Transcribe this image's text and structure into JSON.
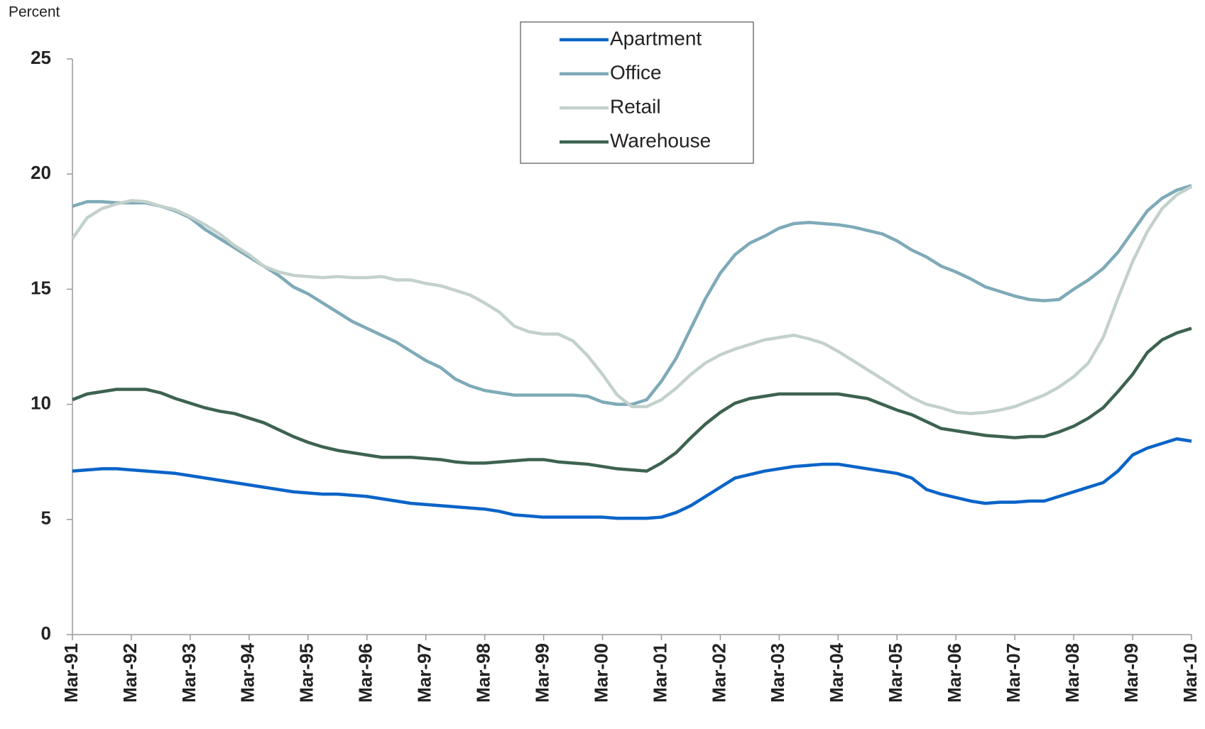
{
  "chart_data": {
    "type": "line",
    "y_label": "Percent",
    "categories": [
      "Mar-91",
      null,
      null,
      null,
      "Mar-92",
      null,
      null,
      null,
      "Mar-93",
      null,
      null,
      null,
      "Mar-94",
      null,
      null,
      null,
      "Mar-95",
      null,
      null,
      null,
      "Mar-96",
      null,
      null,
      null,
      "Mar-97",
      null,
      null,
      null,
      "Mar-98",
      null,
      null,
      null,
      "Mar-99",
      null,
      null,
      null,
      "Mar-00",
      null,
      null,
      null,
      "Mar-01",
      null,
      null,
      null,
      "Mar-02",
      null,
      null,
      null,
      "Mar-03",
      null,
      null,
      null,
      "Mar-04",
      null,
      null,
      null,
      "Mar-05",
      null,
      null,
      null,
      "Mar-06",
      null,
      null,
      null,
      "Mar-07",
      null,
      null,
      null,
      "Mar-08",
      null,
      null,
      null,
      "Mar-09",
      null,
      null,
      null,
      "Mar-10"
    ],
    "series": [
      {
        "name": "Apartment",
        "color": "#0a64c8",
        "values": [
          7.1,
          7.15,
          7.2,
          7.2,
          7.15,
          7.1,
          7.05,
          7.0,
          6.9,
          6.8,
          6.7,
          6.6,
          6.5,
          6.4,
          6.3,
          6.2,
          6.15,
          6.1,
          6.1,
          6.05,
          6.0,
          5.9,
          5.8,
          5.7,
          5.65,
          5.6,
          5.55,
          5.5,
          5.45,
          5.35,
          5.2,
          5.15,
          5.1,
          5.1,
          5.1,
          5.1,
          5.1,
          5.05,
          5.05,
          5.05,
          5.1,
          5.3,
          5.6,
          6.0,
          6.4,
          6.8,
          6.95,
          7.1,
          7.2,
          7.3,
          7.35,
          7.4,
          7.4,
          7.3,
          7.2,
          7.1,
          7.0,
          6.8,
          6.3,
          6.1,
          5.95,
          5.8,
          5.7,
          5.75,
          5.75,
          5.8,
          5.8,
          6.0,
          6.2,
          6.4,
          6.6,
          7.1,
          7.8,
          8.1,
          8.3,
          8.5,
          8.4
        ]
      },
      {
        "name": "Office",
        "color": "#7eaab8",
        "values": [
          18.6,
          18.8,
          18.8,
          18.75,
          18.75,
          18.75,
          18.6,
          18.4,
          18.1,
          17.6,
          17.2,
          16.8,
          16.4,
          16.0,
          15.6,
          15.1,
          14.8,
          14.4,
          14.0,
          13.6,
          13.3,
          13.0,
          12.7,
          12.3,
          11.9,
          11.6,
          11.1,
          10.8,
          10.6,
          10.5,
          10.4,
          10.4,
          10.4,
          10.4,
          10.4,
          10.35,
          10.1,
          10.0,
          10.0,
          10.2,
          11.0,
          12.0,
          13.3,
          14.6,
          15.7,
          16.5,
          17.0,
          17.3,
          17.65,
          17.85,
          17.9,
          17.85,
          17.8,
          17.7,
          17.55,
          17.4,
          17.1,
          16.7,
          16.4,
          16.0,
          15.75,
          15.45,
          15.1,
          14.9,
          14.7,
          14.55,
          14.5,
          14.55,
          15.0,
          15.4,
          15.9,
          16.6,
          17.5,
          18.4,
          18.95,
          19.3,
          19.5
        ]
      },
      {
        "name": "Retail",
        "color": "#c3d1cc",
        "values": [
          17.2,
          18.1,
          18.5,
          18.7,
          18.85,
          18.8,
          18.6,
          18.45,
          18.15,
          17.8,
          17.4,
          16.9,
          16.5,
          16.0,
          15.75,
          15.6,
          15.55,
          15.5,
          15.55,
          15.5,
          15.5,
          15.55,
          15.4,
          15.4,
          15.25,
          15.15,
          14.95,
          14.75,
          14.4,
          14.0,
          13.4,
          13.15,
          13.05,
          13.05,
          12.75,
          12.1,
          11.3,
          10.4,
          9.9,
          9.9,
          10.2,
          10.7,
          11.3,
          11.8,
          12.15,
          12.4,
          12.6,
          12.8,
          12.9,
          13.0,
          12.85,
          12.65,
          12.3,
          11.9,
          11.5,
          11.1,
          10.7,
          10.3,
          10.0,
          9.85,
          9.65,
          9.6,
          9.65,
          9.75,
          9.9,
          10.15,
          10.4,
          10.75,
          11.2,
          11.8,
          12.9,
          14.6,
          16.2,
          17.5,
          18.5,
          19.1,
          19.45
        ]
      },
      {
        "name": "Warehouse",
        "color": "#3d6350",
        "values": [
          10.2,
          10.45,
          10.55,
          10.65,
          10.65,
          10.65,
          10.5,
          10.25,
          10.05,
          9.85,
          9.7,
          9.6,
          9.4,
          9.2,
          8.9,
          8.6,
          8.35,
          8.15,
          8.0,
          7.9,
          7.8,
          7.7,
          7.7,
          7.7,
          7.65,
          7.6,
          7.5,
          7.45,
          7.45,
          7.5,
          7.55,
          7.6,
          7.6,
          7.5,
          7.45,
          7.4,
          7.3,
          7.2,
          7.15,
          7.1,
          7.45,
          7.9,
          8.55,
          9.15,
          9.65,
          10.05,
          10.25,
          10.35,
          10.45,
          10.45,
          10.45,
          10.45,
          10.45,
          10.35,
          10.25,
          10.0,
          9.75,
          9.55,
          9.25,
          8.95,
          8.85,
          8.75,
          8.65,
          8.6,
          8.55,
          8.6,
          8.6,
          8.8,
          9.05,
          9.4,
          9.85,
          10.55,
          11.3,
          12.25,
          12.8,
          13.1,
          13.3
        ]
      }
    ],
    "ylim": [
      0,
      25
    ],
    "yticks": [
      0,
      5,
      10,
      15,
      20,
      25
    ]
  }
}
